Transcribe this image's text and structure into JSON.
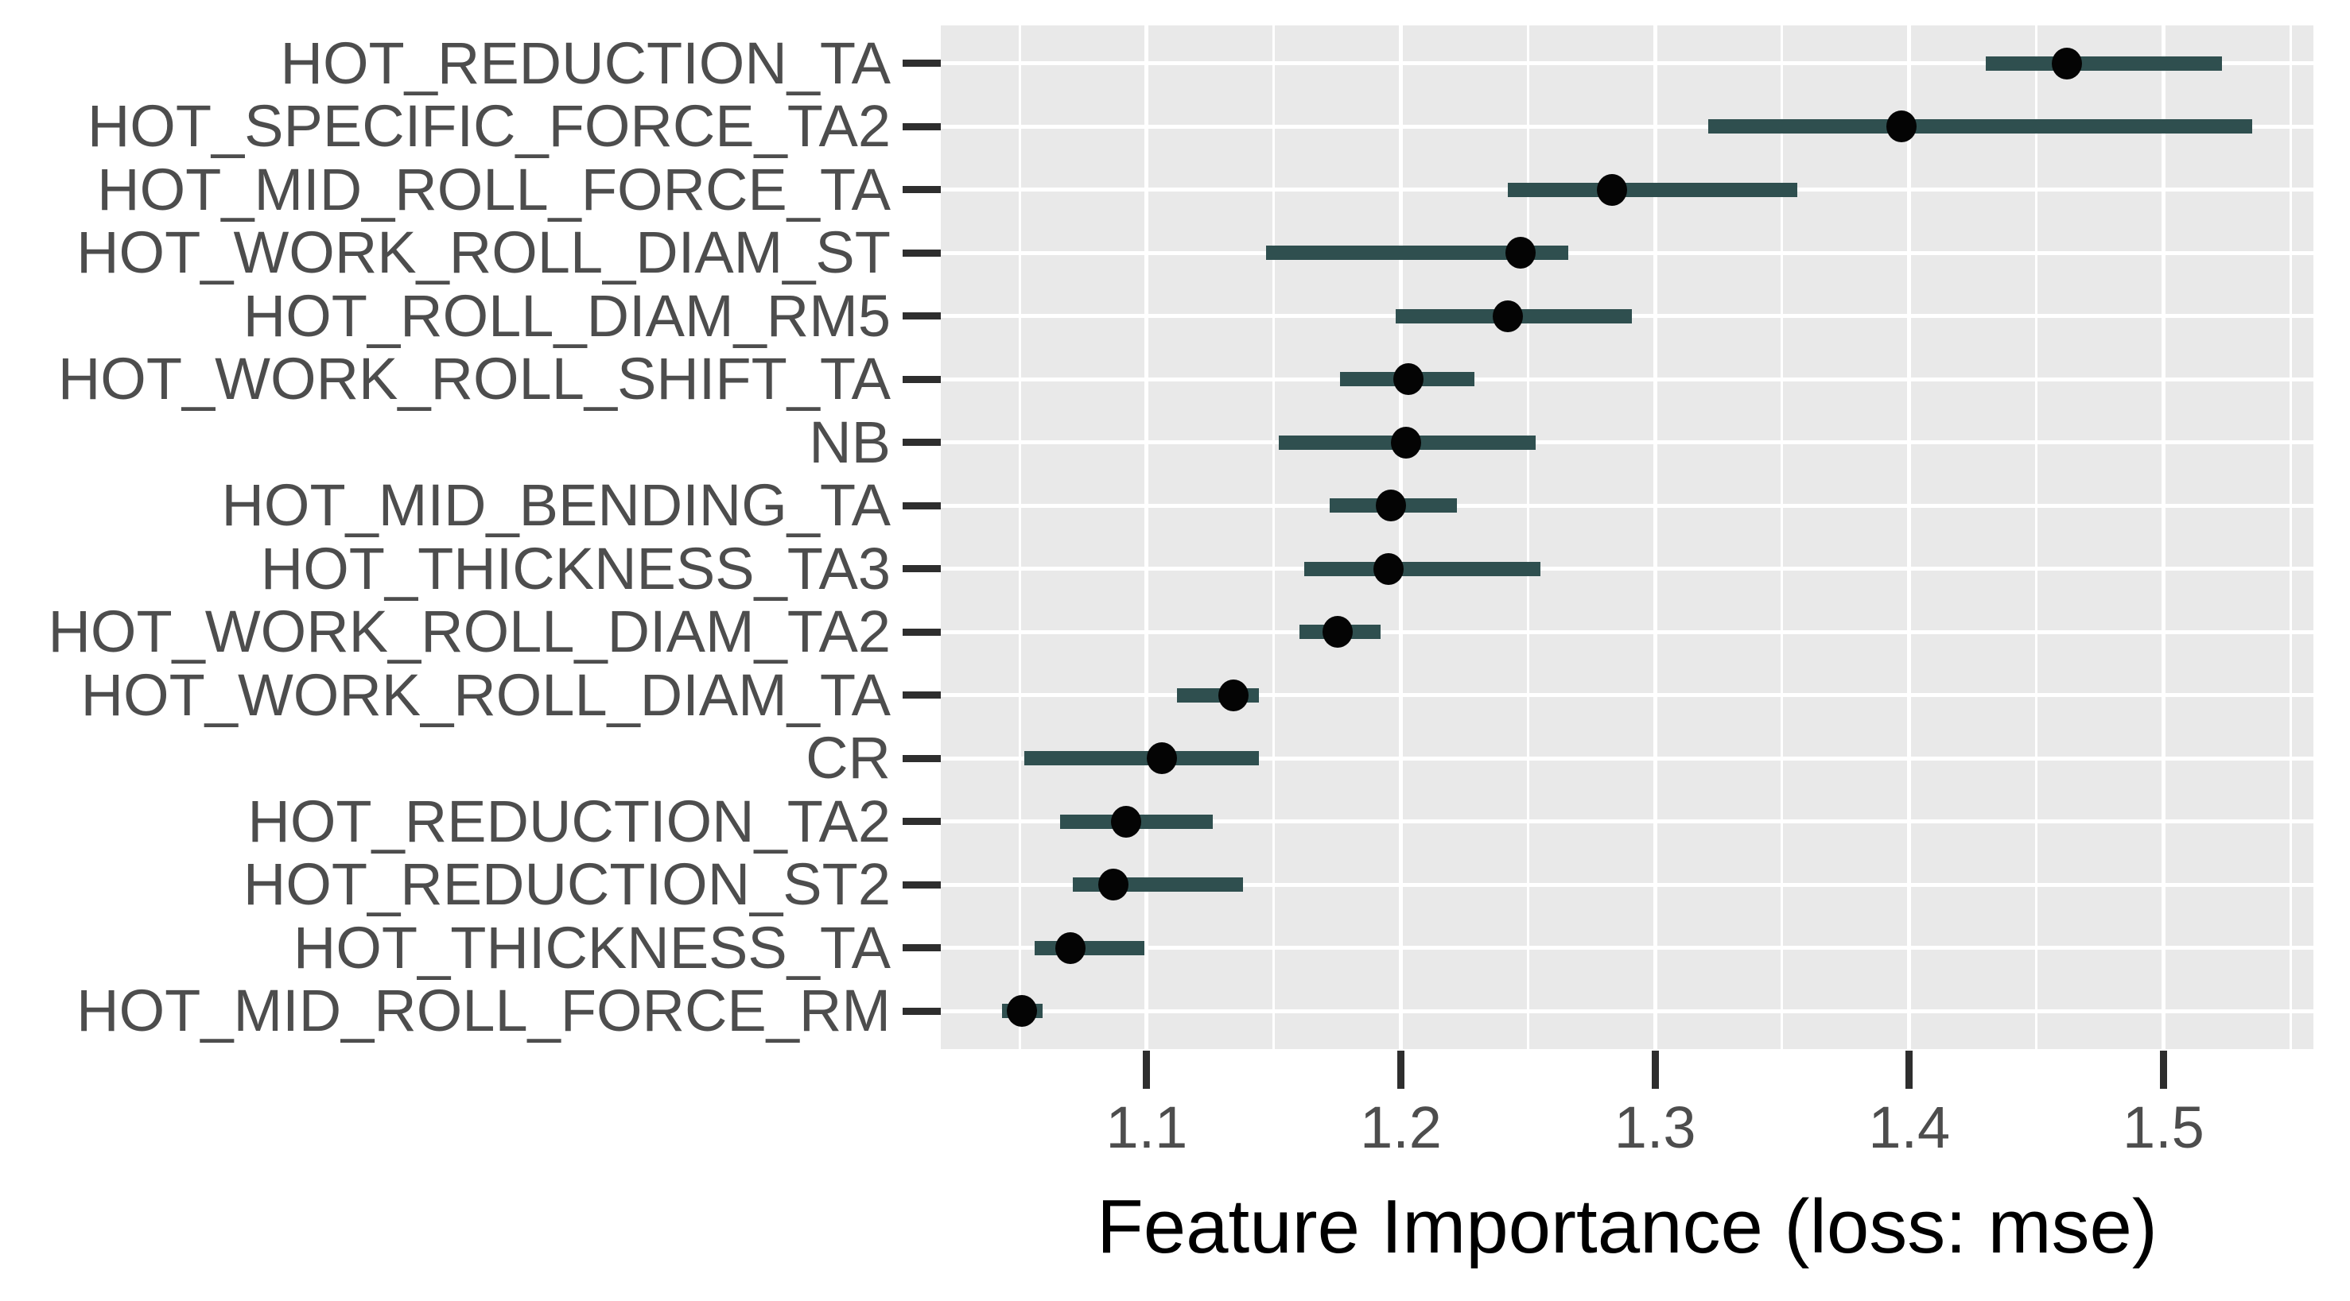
{
  "chart_data": {
    "type": "scatter",
    "variant": "horizontal-dot-plot-with-ranges",
    "title": "",
    "xlabel": "Feature Importance (loss: mse)",
    "ylabel": "",
    "xlim": [
      1.019,
      1.559
    ],
    "x_ticks": [
      1.1,
      1.2,
      1.3,
      1.4,
      1.5
    ],
    "x_tick_labels": [
      "1.1",
      "1.2",
      "1.3",
      "1.4",
      "1.5"
    ],
    "x_minor_ticks": [
      1.05,
      1.15,
      1.25,
      1.35,
      1.45,
      1.55
    ],
    "grid": true,
    "legend_position": "none",
    "categories": [
      "HOT_REDUCTION_TA",
      "HOT_SPECIFIC_FORCE_TA2",
      "HOT_MID_ROLL_FORCE_TA",
      "HOT_WORK_ROLL_DIAM_ST",
      "HOT_ROLL_DIAM_RM5",
      "HOT_WORK_ROLL_SHIFT_TA",
      "NB",
      "HOT_MID_BENDING_TA",
      "HOT_THICKNESS_TA3",
      "HOT_WORK_ROLL_DIAM_TA2",
      "HOT_WORK_ROLL_DIAM_TA",
      "CR",
      "HOT_REDUCTION_TA2",
      "HOT_REDUCTION_ST2",
      "HOT_THICKNESS_TA",
      "HOT_MID_ROLL_FORCE_RM"
    ],
    "points": [
      {
        "label": "HOT_REDUCTION_TA",
        "low": 1.43,
        "value": 1.462,
        "high": 1.523
      },
      {
        "label": "HOT_SPECIFIC_FORCE_TA2",
        "low": 1.321,
        "value": 1.397,
        "high": 1.535
      },
      {
        "label": "HOT_MID_ROLL_FORCE_TA",
        "low": 1.242,
        "value": 1.283,
        "high": 1.356
      },
      {
        "label": "HOT_WORK_ROLL_DIAM_ST",
        "low": 1.147,
        "value": 1.247,
        "high": 1.266
      },
      {
        "label": "HOT_ROLL_DIAM_RM5",
        "low": 1.198,
        "value": 1.242,
        "high": 1.291
      },
      {
        "label": "HOT_WORK_ROLL_SHIFT_TA",
        "low": 1.176,
        "value": 1.203,
        "high": 1.229
      },
      {
        "label": "NB",
        "low": 1.152,
        "value": 1.202,
        "high": 1.253
      },
      {
        "label": "HOT_MID_BENDING_TA",
        "low": 1.172,
        "value": 1.196,
        "high": 1.222
      },
      {
        "label": "HOT_THICKNESS_TA3",
        "low": 1.162,
        "value": 1.195,
        "high": 1.255
      },
      {
        "label": "HOT_WORK_ROLL_DIAM_TA2",
        "low": 1.16,
        "value": 1.175,
        "high": 1.192
      },
      {
        "label": "HOT_WORK_ROLL_DIAM_TA",
        "low": 1.112,
        "value": 1.134,
        "high": 1.144
      },
      {
        "label": "CR",
        "low": 1.052,
        "value": 1.106,
        "high": 1.144
      },
      {
        "label": "HOT_REDUCTION_TA2",
        "low": 1.066,
        "value": 1.092,
        "high": 1.126
      },
      {
        "label": "HOT_REDUCTION_ST2",
        "low": 1.071,
        "value": 1.087,
        "high": 1.138
      },
      {
        "label": "HOT_THICKNESS_TA",
        "low": 1.056,
        "value": 1.07,
        "high": 1.099
      },
      {
        "label": "HOT_MID_ROLL_FORCE_RM",
        "low": 1.043,
        "value": 1.051,
        "high": 1.059
      }
    ]
  },
  "colors": {
    "page_bg": "#FFFFFF",
    "panel_bg": "#E9E9E9",
    "grid": "#FFFFFF",
    "bar": "#2F4F4F",
    "dot": "#040404",
    "tick": "#2E2E2E",
    "tick_label": "#4D4D4D",
    "axis_title": "#000000"
  }
}
